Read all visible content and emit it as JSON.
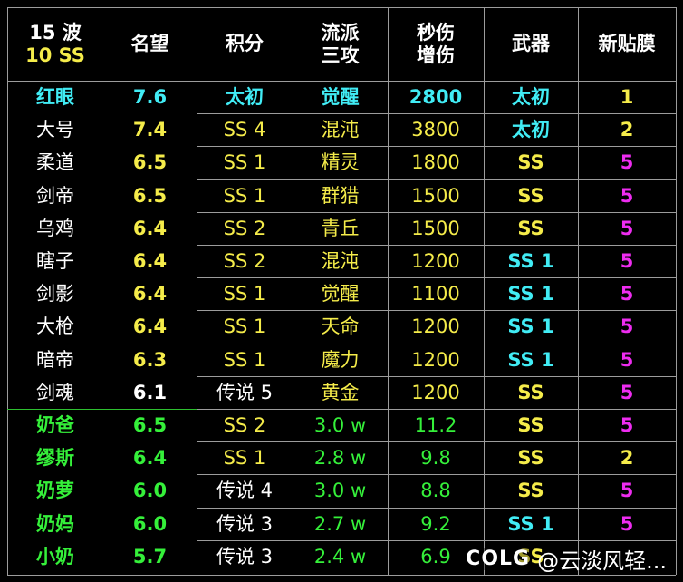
{
  "headers": [
    {
      "lines": [
        "15 波",
        "10 SS"
      ],
      "colors": [
        "white",
        "yellow"
      ]
    },
    {
      "lines": [
        "名望"
      ],
      "colors": [
        "white"
      ]
    },
    {
      "lines": [
        "积分"
      ],
      "colors": [
        "white"
      ]
    },
    {
      "lines": [
        "流派",
        "三攻"
      ],
      "colors": [
        "white",
        "white"
      ]
    },
    {
      "lines": [
        "秒伤",
        "增伤"
      ],
      "colors": [
        "white",
        "white"
      ]
    },
    {
      "lines": [
        "武器"
      ],
      "colors": [
        "white"
      ]
    },
    {
      "lines": [
        "新贴膜"
      ],
      "colors": [
        "white"
      ]
    }
  ],
  "rows": [
    [
      {
        "t": "红眼",
        "c": "cyan",
        "b": true
      },
      {
        "t": "7.6",
        "c": "cyan",
        "b": true
      },
      {
        "t": "太初",
        "c": "cyan",
        "b": true
      },
      {
        "t": "觉醒",
        "c": "cyan",
        "b": true
      },
      {
        "t": "2800",
        "c": "cyan",
        "b": true
      },
      {
        "t": "太初",
        "c": "cyan",
        "b": true
      },
      {
        "t": "1",
        "c": "yellow",
        "b": true
      }
    ],
    [
      {
        "t": "大号",
        "c": "white"
      },
      {
        "t": "7.4",
        "c": "yellow",
        "b": true
      },
      {
        "t": "SS 4",
        "c": "yellow"
      },
      {
        "t": "混沌",
        "c": "yellow"
      },
      {
        "t": "3800",
        "c": "yellow"
      },
      {
        "t": "太初",
        "c": "cyan",
        "b": true
      },
      {
        "t": "2",
        "c": "yellow",
        "b": true
      }
    ],
    [
      {
        "t": "柔道",
        "c": "white"
      },
      {
        "t": "6.5",
        "c": "yellow",
        "b": true
      },
      {
        "t": "SS 1",
        "c": "yellow"
      },
      {
        "t": "精灵",
        "c": "yellow"
      },
      {
        "t": "1800",
        "c": "yellow"
      },
      {
        "t": "SS",
        "c": "yellow",
        "b": true
      },
      {
        "t": "5",
        "c": "magenta",
        "b": true
      }
    ],
    [
      {
        "t": "剑帝",
        "c": "white"
      },
      {
        "t": "6.5",
        "c": "yellow",
        "b": true
      },
      {
        "t": "SS 1",
        "c": "yellow"
      },
      {
        "t": "群猎",
        "c": "yellow"
      },
      {
        "t": "1500",
        "c": "yellow"
      },
      {
        "t": "SS",
        "c": "yellow",
        "b": true
      },
      {
        "t": "5",
        "c": "magenta",
        "b": true
      }
    ],
    [
      {
        "t": "乌鸡",
        "c": "white"
      },
      {
        "t": "6.4",
        "c": "yellow",
        "b": true
      },
      {
        "t": "SS 2",
        "c": "yellow"
      },
      {
        "t": "青丘",
        "c": "yellow"
      },
      {
        "t": "1500",
        "c": "yellow"
      },
      {
        "t": "SS",
        "c": "yellow",
        "b": true
      },
      {
        "t": "5",
        "c": "magenta",
        "b": true
      }
    ],
    [
      {
        "t": "瞎子",
        "c": "white"
      },
      {
        "t": "6.4",
        "c": "yellow",
        "b": true
      },
      {
        "t": "SS 2",
        "c": "yellow"
      },
      {
        "t": "混沌",
        "c": "yellow"
      },
      {
        "t": "1200",
        "c": "yellow"
      },
      {
        "t": "SS 1",
        "c": "cyan",
        "b": true
      },
      {
        "t": "5",
        "c": "magenta",
        "b": true
      }
    ],
    [
      {
        "t": "剑影",
        "c": "white"
      },
      {
        "t": "6.4",
        "c": "yellow",
        "b": true
      },
      {
        "t": "SS 1",
        "c": "yellow"
      },
      {
        "t": "觉醒",
        "c": "yellow"
      },
      {
        "t": "1100",
        "c": "yellow"
      },
      {
        "t": "SS 1",
        "c": "cyan",
        "b": true
      },
      {
        "t": "5",
        "c": "magenta",
        "b": true
      }
    ],
    [
      {
        "t": "大枪",
        "c": "white"
      },
      {
        "t": "6.4",
        "c": "yellow",
        "b": true
      },
      {
        "t": "SS 1",
        "c": "yellow"
      },
      {
        "t": "天命",
        "c": "yellow"
      },
      {
        "t": "1200",
        "c": "yellow"
      },
      {
        "t": "SS 1",
        "c": "cyan",
        "b": true
      },
      {
        "t": "5",
        "c": "magenta",
        "b": true
      }
    ],
    [
      {
        "t": "暗帝",
        "c": "white"
      },
      {
        "t": "6.3",
        "c": "yellow",
        "b": true
      },
      {
        "t": "SS 1",
        "c": "yellow"
      },
      {
        "t": "魔力",
        "c": "yellow"
      },
      {
        "t": "1200",
        "c": "yellow"
      },
      {
        "t": "SS 1",
        "c": "cyan",
        "b": true
      },
      {
        "t": "5",
        "c": "magenta",
        "b": true
      }
    ],
    [
      {
        "t": "剑魂",
        "c": "white"
      },
      {
        "t": "6.1",
        "c": "white",
        "b": true
      },
      {
        "t": "传说 5",
        "c": "white"
      },
      {
        "t": "黄金",
        "c": "yellow"
      },
      {
        "t": "1200",
        "c": "yellow"
      },
      {
        "t": "SS",
        "c": "yellow",
        "b": true
      },
      {
        "t": "5",
        "c": "magenta",
        "b": true
      }
    ],
    [
      {
        "t": "奶爸",
        "c": "green",
        "b": true
      },
      {
        "t": "6.5",
        "c": "green",
        "b": true
      },
      {
        "t": "SS 2",
        "c": "yellow"
      },
      {
        "t": "3.0 w",
        "c": "green"
      },
      {
        "t": "11.2",
        "c": "green"
      },
      {
        "t": "SS",
        "c": "yellow",
        "b": true
      },
      {
        "t": "5",
        "c": "magenta",
        "b": true
      }
    ],
    [
      {
        "t": "缪斯",
        "c": "green",
        "b": true
      },
      {
        "t": "6.4",
        "c": "green",
        "b": true
      },
      {
        "t": "SS 1",
        "c": "yellow"
      },
      {
        "t": "2.8 w",
        "c": "green"
      },
      {
        "t": "9.8",
        "c": "green"
      },
      {
        "t": "SS",
        "c": "yellow",
        "b": true
      },
      {
        "t": "2",
        "c": "yellow",
        "b": true
      }
    ],
    [
      {
        "t": "奶萝",
        "c": "green",
        "b": true
      },
      {
        "t": "6.0",
        "c": "green",
        "b": true
      },
      {
        "t": "传说 4",
        "c": "white"
      },
      {
        "t": "3.0 w",
        "c": "green"
      },
      {
        "t": "8.8",
        "c": "green"
      },
      {
        "t": "SS",
        "c": "yellow",
        "b": true
      },
      {
        "t": "5",
        "c": "magenta",
        "b": true
      }
    ],
    [
      {
        "t": "奶妈",
        "c": "green",
        "b": true
      },
      {
        "t": "6.0",
        "c": "green",
        "b": true
      },
      {
        "t": "传说 3",
        "c": "white"
      },
      {
        "t": "2.7 w",
        "c": "green"
      },
      {
        "t": "9.2",
        "c": "green"
      },
      {
        "t": "SS 1",
        "c": "cyan",
        "b": true
      },
      {
        "t": "5",
        "c": "magenta",
        "b": true
      }
    ],
    [
      {
        "t": "小奶",
        "c": "green",
        "b": true
      },
      {
        "t": "5.7",
        "c": "green",
        "b": true
      },
      {
        "t": "传说 3",
        "c": "white"
      },
      {
        "t": "2.4 w",
        "c": "green"
      },
      {
        "t": "6.9",
        "c": "green"
      },
      {
        "t": "SS",
        "c": "yellow",
        "b": true
      },
      {
        "t": "",
        "c": "magenta",
        "b": true
      }
    ]
  ],
  "watermark": {
    "logo": "COLG",
    "text": "@云淡风轻..."
  },
  "colors": {
    "cyan": "#41ecf5",
    "yellow": "#f5ec4a",
    "white": "#ffffff",
    "green": "#35f03a",
    "magenta": "#ee2cf0",
    "grid": "#9c9c9c",
    "background": "#000000"
  }
}
